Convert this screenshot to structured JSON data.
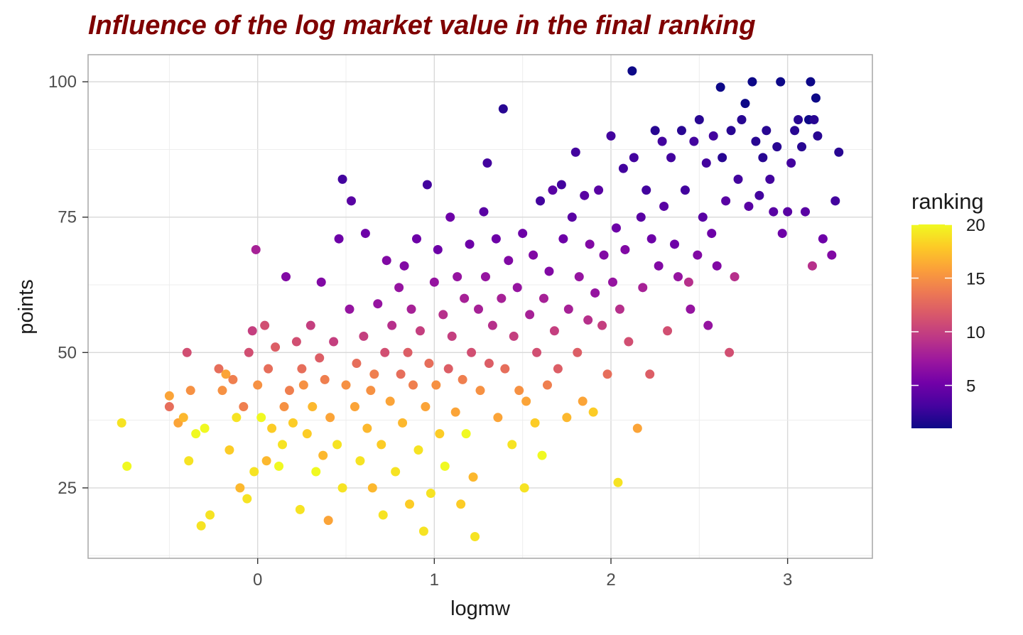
{
  "chart_data": {
    "type": "scatter",
    "title": "Influence of the log market value in the final ranking",
    "xlabel": "logmw",
    "ylabel": "points",
    "xlim": [
      -0.96,
      3.48
    ],
    "ylim": [
      12,
      105
    ],
    "x_ticks": [
      0,
      1,
      2,
      3
    ],
    "x_tick_labels": [
      "0",
      "1",
      "2",
      "3"
    ],
    "y_ticks": [
      25,
      50,
      75,
      100
    ],
    "y_tick_labels": [
      "25",
      "50",
      "75",
      "100"
    ],
    "grid": true,
    "legend": {
      "title": "ranking",
      "placement": "right",
      "type": "colorbar",
      "range": [
        1,
        20
      ],
      "ticks": [
        5,
        10,
        15,
        20
      ],
      "tick_labels": [
        "5",
        "10",
        "15",
        "20"
      ],
      "palette": "plasma"
    },
    "colors": {
      "title": "#7f0000",
      "panel_border": "#a6a6a6",
      "grid_major": "#d9d9d9",
      "grid_minor": "#ececec",
      "plasma": [
        "#0d0887",
        "#46039f",
        "#7201a8",
        "#9c179e",
        "#bd3786",
        "#d8576b",
        "#ed7953",
        "#fb9f3a",
        "#fdca26",
        "#f0f921"
      ]
    },
    "series": [
      {
        "points": [
          [
            -0.77,
            37,
            19
          ],
          [
            -0.74,
            29,
            20
          ],
          [
            -0.5,
            40,
            13
          ],
          [
            -0.5,
            42,
            16
          ],
          [
            -0.45,
            37,
            16
          ],
          [
            -0.42,
            38,
            17
          ],
          [
            -0.4,
            50,
            11
          ],
          [
            -0.39,
            30,
            19
          ],
          [
            -0.38,
            43,
            15
          ],
          [
            -0.35,
            35,
            20
          ],
          [
            -0.32,
            18,
            19
          ],
          [
            -0.3,
            36,
            20
          ],
          [
            -0.27,
            20,
            19
          ],
          [
            -0.22,
            47,
            13
          ],
          [
            -0.2,
            43,
            15
          ],
          [
            -0.18,
            46,
            16
          ],
          [
            -0.16,
            32,
            18
          ],
          [
            -0.14,
            45,
            14
          ],
          [
            -0.12,
            38,
            19
          ],
          [
            -0.1,
            25,
            17
          ],
          [
            -0.08,
            40,
            14
          ],
          [
            -0.06,
            23,
            19
          ],
          [
            -0.05,
            50,
            11
          ],
          [
            -0.03,
            54,
            10
          ],
          [
            -0.02,
            28,
            19
          ],
          [
            -0.01,
            69,
            8
          ],
          [
            0.0,
            44,
            15
          ],
          [
            0.02,
            38,
            20
          ],
          [
            0.04,
            55,
            11
          ],
          [
            0.05,
            30,
            17
          ],
          [
            0.06,
            47,
            13
          ],
          [
            0.08,
            36,
            18
          ],
          [
            0.1,
            51,
            12
          ],
          [
            0.12,
            29,
            20
          ],
          [
            0.14,
            33,
            19
          ],
          [
            0.15,
            40,
            15
          ],
          [
            0.16,
            64,
            6
          ],
          [
            0.18,
            43,
            14
          ],
          [
            0.2,
            37,
            18
          ],
          [
            0.22,
            52,
            11
          ],
          [
            0.24,
            21,
            19
          ],
          [
            0.25,
            47,
            13
          ],
          [
            0.26,
            44,
            15
          ],
          [
            0.28,
            35,
            18
          ],
          [
            0.3,
            55,
            10
          ],
          [
            0.31,
            40,
            17
          ],
          [
            0.33,
            28,
            20
          ],
          [
            0.35,
            49,
            12
          ],
          [
            0.36,
            63,
            6
          ],
          [
            0.37,
            31,
            17
          ],
          [
            0.38,
            45,
            14
          ],
          [
            0.4,
            19,
            16
          ],
          [
            0.41,
            38,
            16
          ],
          [
            0.43,
            52,
            10
          ],
          [
            0.45,
            33,
            19
          ],
          [
            0.46,
            71,
            5
          ],
          [
            0.48,
            25,
            19
          ],
          [
            0.48,
            82,
            3
          ],
          [
            0.5,
            44,
            15
          ],
          [
            0.52,
            58,
            7
          ],
          [
            0.53,
            78,
            4
          ],
          [
            0.55,
            40,
            16
          ],
          [
            0.56,
            48,
            13
          ],
          [
            0.58,
            30,
            19
          ],
          [
            0.6,
            53,
            10
          ],
          [
            0.61,
            72,
            5
          ],
          [
            0.62,
            36,
            17
          ],
          [
            0.64,
            43,
            15
          ],
          [
            0.65,
            25,
            17
          ],
          [
            0.66,
            46,
            14
          ],
          [
            0.68,
            59,
            7
          ],
          [
            0.7,
            33,
            18
          ],
          [
            0.71,
            20,
            19
          ],
          [
            0.72,
            50,
            11
          ],
          [
            0.73,
            67,
            6
          ],
          [
            0.75,
            41,
            16
          ],
          [
            0.76,
            55,
            9
          ],
          [
            0.78,
            28,
            19
          ],
          [
            0.8,
            62,
            7
          ],
          [
            0.81,
            46,
            13
          ],
          [
            0.82,
            37,
            17
          ],
          [
            0.83,
            66,
            6
          ],
          [
            0.85,
            50,
            12
          ],
          [
            0.86,
            22,
            18
          ],
          [
            0.87,
            58,
            8
          ],
          [
            0.88,
            44,
            14
          ],
          [
            0.9,
            71,
            5
          ],
          [
            0.91,
            32,
            19
          ],
          [
            0.92,
            54,
            10
          ],
          [
            0.94,
            17,
            19
          ],
          [
            0.95,
            40,
            16
          ],
          [
            0.96,
            81,
            3
          ],
          [
            0.97,
            48,
            13
          ],
          [
            0.98,
            24,
            19
          ],
          [
            1.0,
            63,
            7
          ],
          [
            1.01,
            44,
            15
          ],
          [
            1.02,
            69,
            5
          ],
          [
            1.03,
            35,
            18
          ],
          [
            1.05,
            57,
            9
          ],
          [
            1.06,
            29,
            20
          ],
          [
            1.08,
            47,
            12
          ],
          [
            1.09,
            75,
            5
          ],
          [
            1.1,
            53,
            10
          ],
          [
            1.12,
            39,
            16
          ],
          [
            1.13,
            64,
            7
          ],
          [
            1.15,
            22,
            18
          ],
          [
            1.16,
            45,
            14
          ],
          [
            1.17,
            60,
            8
          ],
          [
            1.18,
            35,
            20
          ],
          [
            1.2,
            70,
            5
          ],
          [
            1.21,
            50,
            11
          ],
          [
            1.22,
            27,
            17
          ],
          [
            1.23,
            16,
            19
          ],
          [
            1.25,
            58,
            8
          ],
          [
            1.26,
            43,
            15
          ],
          [
            1.28,
            76,
            4
          ],
          [
            1.29,
            64,
            7
          ],
          [
            1.3,
            85,
            3
          ],
          [
            1.31,
            48,
            12
          ],
          [
            1.33,
            55,
            9
          ],
          [
            1.35,
            71,
            5
          ],
          [
            1.36,
            38,
            16
          ],
          [
            1.38,
            60,
            8
          ],
          [
            1.39,
            95,
            2
          ],
          [
            1.4,
            47,
            13
          ],
          [
            1.42,
            67,
            6
          ],
          [
            1.44,
            33,
            19
          ],
          [
            1.45,
            53,
            10
          ],
          [
            1.47,
            62,
            7
          ],
          [
            1.48,
            43,
            15
          ],
          [
            1.5,
            72,
            5
          ],
          [
            1.51,
            25,
            19
          ],
          [
            1.52,
            41,
            16
          ],
          [
            1.54,
            57,
            8
          ],
          [
            1.56,
            68,
            6
          ],
          [
            1.57,
            37,
            18
          ],
          [
            1.58,
            50,
            11
          ],
          [
            1.6,
            78,
            3
          ],
          [
            1.61,
            31,
            20
          ],
          [
            1.62,
            60,
            8
          ],
          [
            1.64,
            44,
            14
          ],
          [
            1.65,
            65,
            6
          ],
          [
            1.67,
            80,
            4
          ],
          [
            1.68,
            54,
            10
          ],
          [
            1.7,
            47,
            12
          ],
          [
            1.72,
            81,
            3
          ],
          [
            1.73,
            71,
            5
          ],
          [
            1.75,
            38,
            17
          ],
          [
            1.76,
            58,
            8
          ],
          [
            1.78,
            75,
            4
          ],
          [
            1.8,
            87,
            3
          ],
          [
            1.81,
            50,
            12
          ],
          [
            1.82,
            64,
            7
          ],
          [
            1.84,
            41,
            16
          ],
          [
            1.85,
            79,
            4
          ],
          [
            1.87,
            56,
            9
          ],
          [
            1.88,
            70,
            6
          ],
          [
            1.9,
            39,
            18
          ],
          [
            1.91,
            61,
            7
          ],
          [
            1.93,
            80,
            4
          ],
          [
            1.95,
            55,
            10
          ],
          [
            1.96,
            68,
            6
          ],
          [
            1.98,
            46,
            13
          ],
          [
            2.0,
            90,
            3
          ],
          [
            2.01,
            63,
            7
          ],
          [
            2.03,
            73,
            5
          ],
          [
            2.04,
            26,
            19
          ],
          [
            2.05,
            58,
            9
          ],
          [
            2.07,
            84,
            3
          ],
          [
            2.08,
            69,
            6
          ],
          [
            2.1,
            52,
            11
          ],
          [
            2.12,
            102,
            1
          ],
          [
            2.13,
            86,
            3
          ],
          [
            2.15,
            36,
            16
          ],
          [
            2.17,
            75,
            4
          ],
          [
            2.18,
            62,
            8
          ],
          [
            2.2,
            80,
            3
          ],
          [
            2.22,
            46,
            12
          ],
          [
            2.23,
            71,
            5
          ],
          [
            2.25,
            91,
            2
          ],
          [
            2.27,
            66,
            6
          ],
          [
            2.29,
            89,
            3
          ],
          [
            2.3,
            77,
            4
          ],
          [
            2.32,
            54,
            11
          ],
          [
            2.34,
            86,
            3
          ],
          [
            2.36,
            70,
            5
          ],
          [
            2.38,
            64,
            7
          ],
          [
            2.4,
            91,
            2
          ],
          [
            2.42,
            80,
            3
          ],
          [
            2.44,
            63,
            9
          ],
          [
            2.45,
            58,
            7
          ],
          [
            2.47,
            89,
            3
          ],
          [
            2.49,
            68,
            6
          ],
          [
            2.5,
            93,
            2
          ],
          [
            2.52,
            75,
            4
          ],
          [
            2.54,
            85,
            3
          ],
          [
            2.55,
            55,
            7
          ],
          [
            2.57,
            72,
            5
          ],
          [
            2.58,
            90,
            3
          ],
          [
            2.6,
            66,
            6
          ],
          [
            2.62,
            99,
            1
          ],
          [
            2.63,
            86,
            2
          ],
          [
            2.65,
            78,
            4
          ],
          [
            2.67,
            50,
            11
          ],
          [
            2.68,
            91,
            2
          ],
          [
            2.7,
            64,
            9
          ],
          [
            2.72,
            82,
            3
          ],
          [
            2.74,
            93,
            2
          ],
          [
            2.76,
            96,
            1
          ],
          [
            2.78,
            77,
            4
          ],
          [
            2.8,
            100,
            1
          ],
          [
            2.82,
            89,
            2
          ],
          [
            2.84,
            79,
            3
          ],
          [
            2.86,
            86,
            2
          ],
          [
            2.88,
            91,
            2
          ],
          [
            2.9,
            82,
            3
          ],
          [
            2.92,
            76,
            4
          ],
          [
            2.94,
            88,
            2
          ],
          [
            2.96,
            100,
            1
          ],
          [
            2.97,
            72,
            5
          ],
          [
            3.0,
            76,
            4
          ],
          [
            3.02,
            85,
            3
          ],
          [
            3.04,
            91,
            2
          ],
          [
            3.06,
            93,
            2
          ],
          [
            3.08,
            88,
            2
          ],
          [
            3.1,
            76,
            4
          ],
          [
            3.12,
            93,
            1
          ],
          [
            3.13,
            100,
            1
          ],
          [
            3.14,
            66,
            9
          ],
          [
            3.15,
            93,
            2
          ],
          [
            3.16,
            97,
            1
          ],
          [
            3.17,
            90,
            2
          ],
          [
            3.2,
            71,
            5
          ],
          [
            3.25,
            68,
            6
          ],
          [
            3.27,
            78,
            3
          ],
          [
            3.29,
            87,
            2
          ]
        ]
      }
    ]
  }
}
